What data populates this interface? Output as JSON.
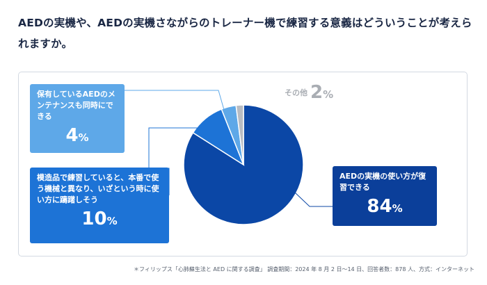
{
  "question": "AEDの実機や、AEDの実機さながらのトレーナー機で練習する意義はどういうことが考えられますか。",
  "chart_data": {
    "type": "pie",
    "categories": [
      "AEDの実機の使い方が復習できる",
      "模造品で練習していると、本番で使う機械と異なり、いざという時に使い方に躊躇しそう",
      "保有しているAEDのメンテナンスも同時にできる",
      "その他"
    ],
    "values": [
      84,
      10,
      4,
      2
    ],
    "unit": "%",
    "colors": [
      "#0b47a6",
      "#1d73d6",
      "#5ea8e8",
      "#b8bcc2"
    ]
  },
  "callouts": {
    "main": {
      "label": "AEDの実機の使い方が復習できる",
      "value": "84",
      "unit": "%"
    },
    "fake": {
      "label": "模造品で練習していると、本番で使う機械と異なり、いざという時に使い方に躊躇しそう",
      "value": "10",
      "unit": "%"
    },
    "maint": {
      "label": "保有しているAEDのメンテナンスも同時にできる",
      "value": "4",
      "unit": "%"
    },
    "other": {
      "label": "その他",
      "value": "2",
      "unit": "%"
    }
  },
  "footnote": "＊フィリップス「心肺蘇生法と AED に関する調査」 調査期間：2024 年 8 月 2 日〜14 日、回答者数：878 人、方式：インターネット"
}
